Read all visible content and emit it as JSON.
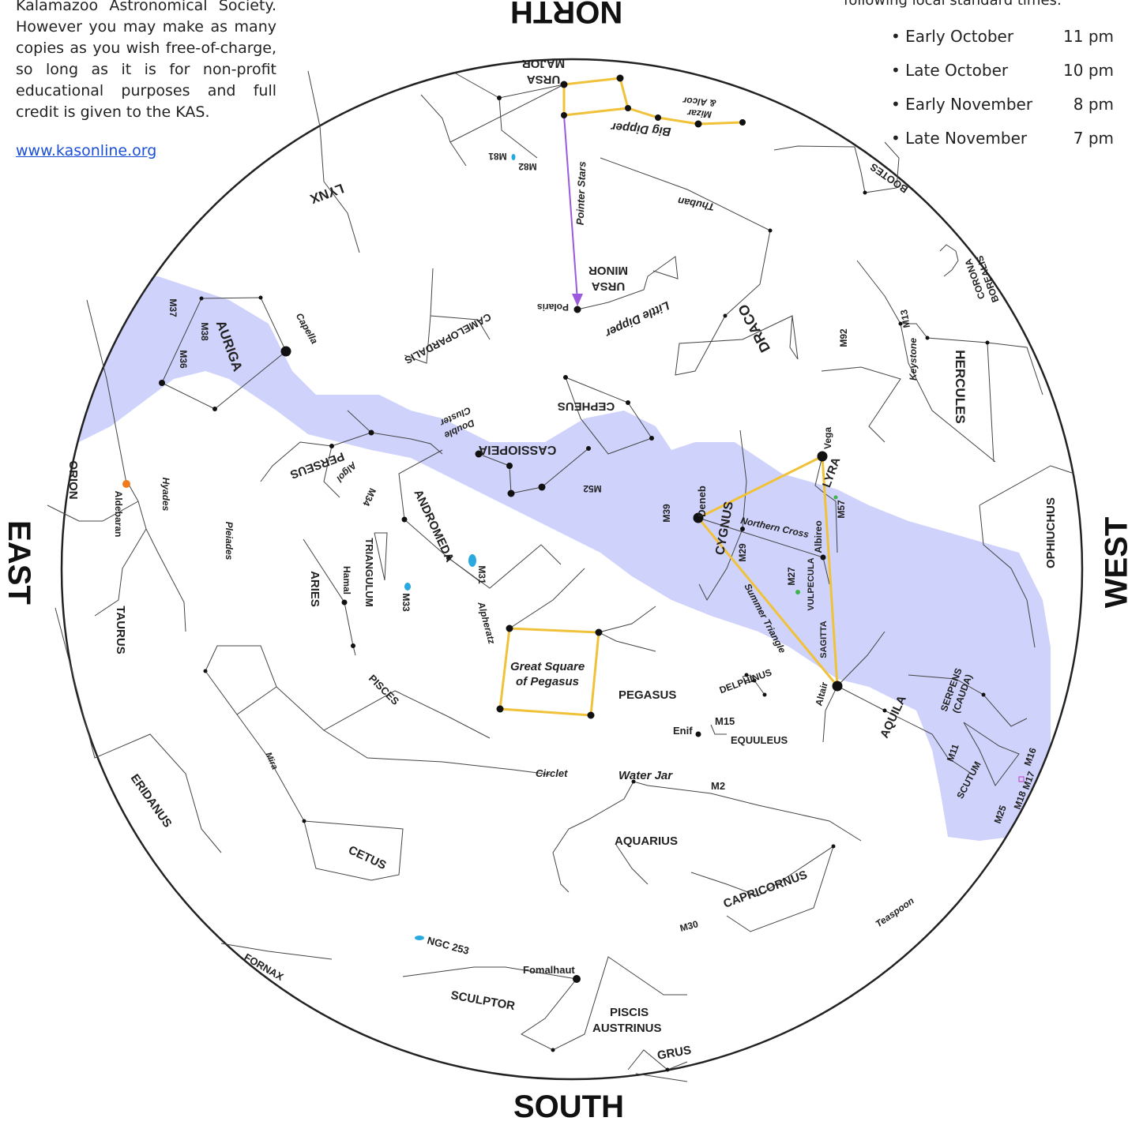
{
  "intro_text": "Kalamazoo Astronomical Society. However you may make as many copies as you wish free-of-charge, so long as it is for non-profit educational purposes and full credit is given to the KAS.",
  "website": "www.kasonline.org",
  "times": {
    "heading": "following local standard times:",
    "rows": [
      {
        "when": "Early October",
        "time": "11 pm"
      },
      {
        "when": "Late October",
        "time": "10 pm"
      },
      {
        "when": "Early November",
        "time": "8 pm"
      },
      {
        "when": "Late November",
        "time": "7 pm"
      }
    ]
  },
  "directions": {
    "north": "NORTH",
    "south": "SOUTH",
    "east": "EAST",
    "west": "WEST"
  },
  "constellations": {
    "ursa_major": "URSA",
    "ursa_major_2": "MAJOR",
    "ursa_minor": "URSA",
    "ursa_minor_2": "MINOR",
    "lynx": "LYNX",
    "camelopardalis": "CAMELOPARDALIS",
    "auriga": "AURIGA",
    "draco": "DRACO",
    "hercules": "HERCULES",
    "corona_borealis": "CORONA",
    "corona_borealis_2": "BOREALIS",
    "bootes": "BOOTES",
    "cepheus": "CEPHEUS",
    "cassiopeia": "CASSIOPEIA",
    "perseus": "PERSEUS",
    "orion": "ORION",
    "taurus": "TAURUS",
    "andromeda": "ANDROMEDA",
    "triangulum": "TRIANGULUM",
    "aries": "ARIES",
    "cygnus": "CYGNUS",
    "lyra": "LYRA",
    "vulpecula": "VULPECULA",
    "sagitta": "SAGITTA",
    "ophiuchus": "OPHIUCHUS",
    "serpens": "SERPENS",
    "serpens_2": "(CAUDA)",
    "aquila": "AQUILA",
    "scutum": "SCUTUM",
    "delphinus": "DELPHINUS",
    "equuleus": "EQUULEUS",
    "pegasus": "PEGASUS",
    "pisces": "PISCES",
    "eridanus": "ERIDANUS",
    "cetus": "CETUS",
    "aquarius": "AQUARIUS",
    "capricornus": "CAPRICORNUS",
    "fornax": "FORNAX",
    "sculptor": "SCULPTOR",
    "piscis_austrinus": "PISCIS",
    "piscis_austrinus_2": "AUSTRINUS",
    "grus": "GRUS"
  },
  "asterisms": {
    "big_dipper": "Big Dipper",
    "little_dipper": "Little Dipper",
    "pointer_stars": "Pointer Stars",
    "keystone": "Keystone",
    "northern_cross": "Northern Cross",
    "summer_triangle": "Summer Triangle",
    "great_square": "Great Square",
    "great_square_2": "of Pegasus",
    "circlet": "Circlet",
    "water_jar": "Water Jar",
    "teaspoon": "Teaspoon",
    "double_cluster": "Double",
    "double_cluster_2": "Cluster",
    "hyades": "Hyades",
    "pleiades": "Pleiades"
  },
  "stars": {
    "polaris": "Polaris",
    "mizar": "Mizar",
    "mizar_2": "& Alcor",
    "thuban": "Thuban",
    "capella": "Capella",
    "aldebaran": "Aldebaran",
    "algol": "Algol",
    "hamal": "Hamal",
    "alpheratz": "Alpheratz",
    "deneb": "Deneb",
    "vega": "Vega",
    "albireo": "Albireo",
    "altair": "Altair",
    "enif": "Enif",
    "fomalhaut": "Fomalhaut",
    "mira": "Mira"
  },
  "objects": {
    "m81": "M81",
    "m82": "M82",
    "m37": "M37",
    "m38": "M38",
    "m36": "M36",
    "m34": "M34",
    "m52": "M52",
    "m31": "M31",
    "m33": "M33",
    "m39": "M39",
    "m29": "M29",
    "m27": "M27",
    "m57": "M57",
    "m92": "M92",
    "m13": "M13",
    "m15": "M15",
    "m2": "M2",
    "m30": "M30",
    "m11": "M11",
    "m16": "M16",
    "m17": "M17",
    "m18": "M18",
    "m25": "M25",
    "ngc253": "NGC 253"
  },
  "colors": {
    "milky_way": "#cfd2fb",
    "asterism_line": "#f0c23a",
    "pointer_arrow": "#9b59e0",
    "galaxy": "#2aa8e0",
    "nebula": "#3bb54a",
    "aldebaran": "#f07a1e",
    "line": "#444444"
  }
}
